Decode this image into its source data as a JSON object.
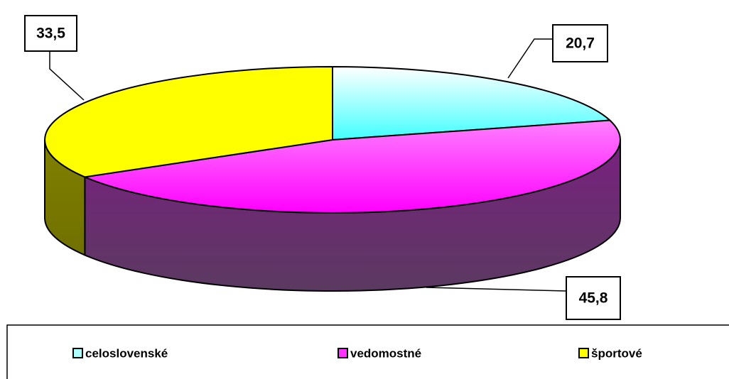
{
  "chart_data": {
    "type": "pie3d",
    "categories": [
      "celoslovenské",
      "vedomostné",
      "športové"
    ],
    "values": [
      20.7,
      45.8,
      33.5
    ],
    "value_labels": [
      "20,7",
      "45,8",
      "33,5"
    ],
    "colors": [
      "#b0ffff",
      "#ff33ff",
      "#ffff00"
    ],
    "legend": "bottom"
  }
}
